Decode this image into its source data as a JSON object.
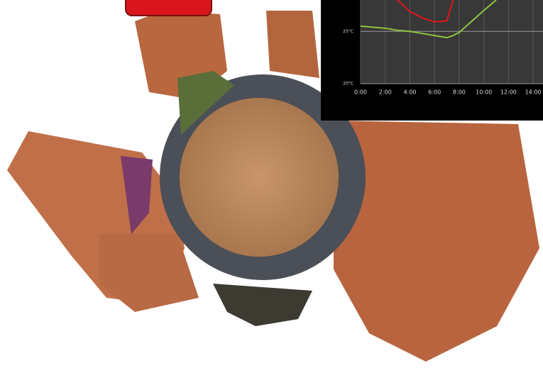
{
  "chart_data": {
    "type": "line",
    "x": [
      0,
      2,
      3,
      4,
      5,
      6,
      7,
      7.5,
      8,
      10,
      11
    ],
    "series": [
      {
        "color": "#e0141c",
        "values": [
          null,
          null,
          28,
          26.9,
          26.3,
          25.9,
          26,
          28,
          null,
          null,
          null
        ]
      },
      {
        "color": "#8fc43c",
        "values": [
          25.5,
          25.3,
          25.1,
          25,
          24.8,
          24.6,
          24.4,
          24.6,
          24.9,
          27,
          28
        ]
      }
    ],
    "xlim": [
      0,
      14.8
    ],
    "xticks": [
      {
        "value": 0,
        "label": "0:00"
      },
      {
        "value": 2,
        "label": "2:00"
      },
      {
        "value": 4,
        "label": "4:00"
      },
      {
        "value": 6,
        "label": "6:00"
      },
      {
        "value": 8,
        "label": "8:00"
      },
      {
        "value": 10,
        "label": "10:00"
      },
      {
        "value": 12,
        "label": "12:00"
      },
      {
        "value": 14,
        "label": "14:00"
      }
    ],
    "ylim": [
      20,
      28
    ],
    "yticks": [
      {
        "value": 20,
        "label": "20°C"
      },
      {
        "value": 25,
        "label": "25°C"
      }
    ],
    "grid": true
  }
}
